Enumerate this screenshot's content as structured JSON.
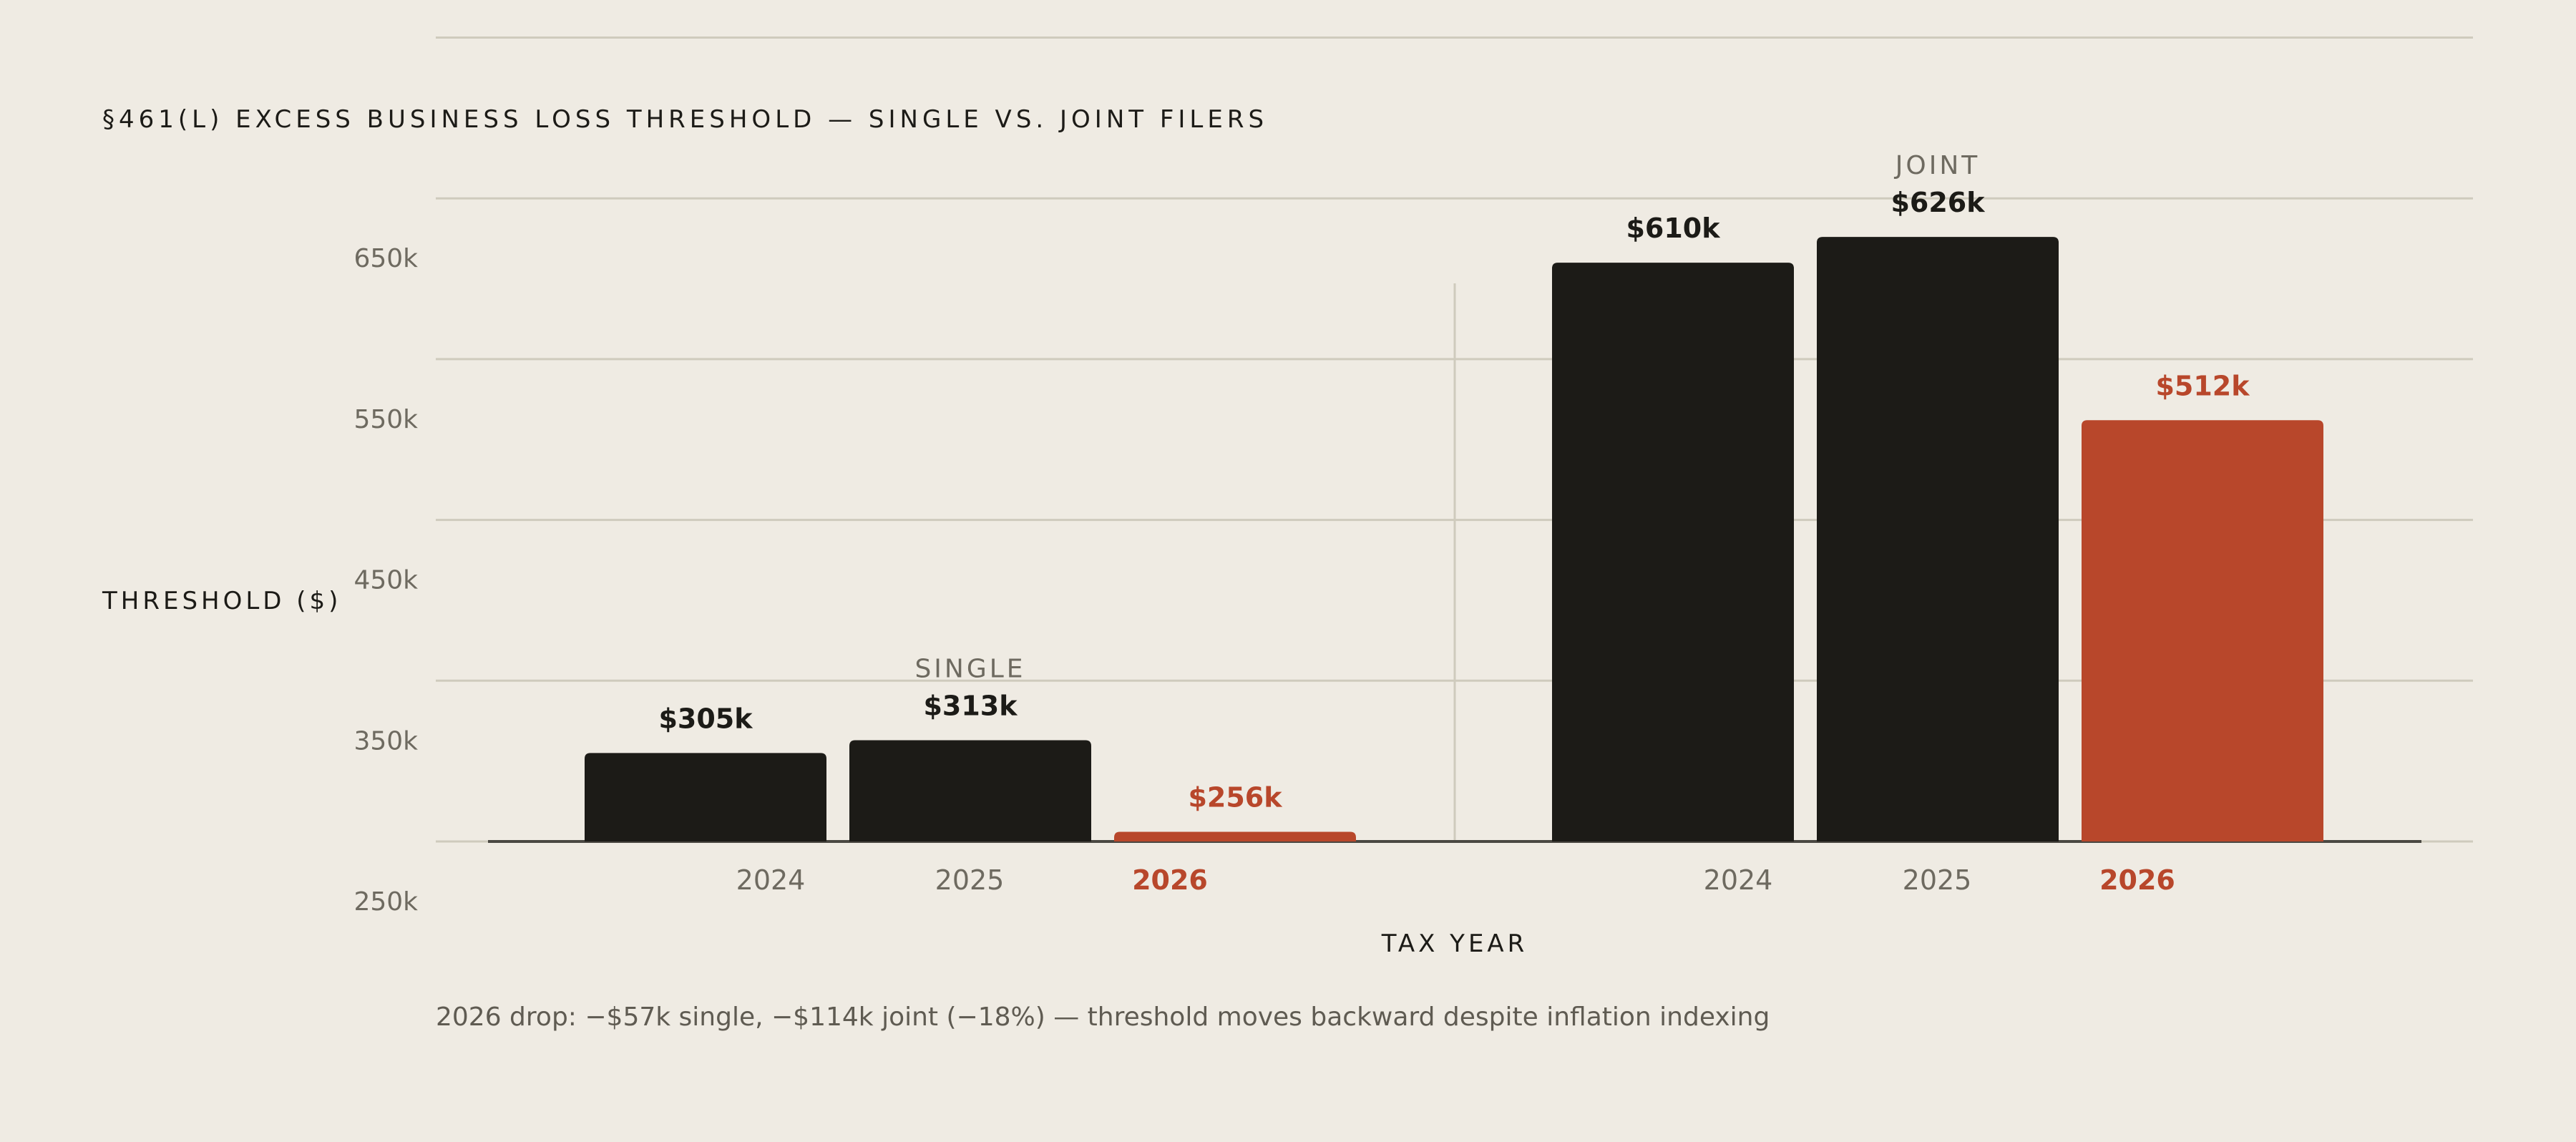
{
  "chart_data": {
    "type": "bar",
    "title": "§461(L) EXCESS BUSINESS LOSS THRESHOLD — SINGLE VS. JOINT FILERS",
    "ylabel": "THRESHOLD ($)",
    "xlabel": "TAX YEAR",
    "ylim": [
      250,
      750
    ],
    "yticks": [
      {
        "value": 250,
        "label": "250k"
      },
      {
        "value": 350,
        "label": "350k"
      },
      {
        "value": 450,
        "label": "450k"
      },
      {
        "value": 550,
        "label": "550k"
      },
      {
        "value": 650,
        "label": "650k"
      }
    ],
    "grid": true,
    "groups": [
      {
        "name": "SINGLE",
        "bars": [
          {
            "category": "2024",
            "value": 305,
            "label": "$305k",
            "highlight": false
          },
          {
            "category": "2025",
            "value": 313,
            "label": "$313k",
            "highlight": false
          },
          {
            "category": "2026",
            "value": 256,
            "label": "$256k",
            "highlight": true
          }
        ]
      },
      {
        "name": "JOINT",
        "bars": [
          {
            "category": "2024",
            "value": 610,
            "label": "$610k",
            "highlight": false
          },
          {
            "category": "2025",
            "value": 626,
            "label": "$626k",
            "highlight": false
          },
          {
            "category": "2026",
            "value": 512,
            "label": "$512k",
            "highlight": true
          }
        ]
      }
    ],
    "note": "2026 drop: −$57k single, −$114k joint (−18%) — threshold moves backward despite inflation indexing",
    "colors": {
      "background": "#efebe3",
      "bar": "#1c1b17",
      "highlight": "#b8472b",
      "grid": "#cfcbbd",
      "axis": "#4a4842"
    }
  }
}
